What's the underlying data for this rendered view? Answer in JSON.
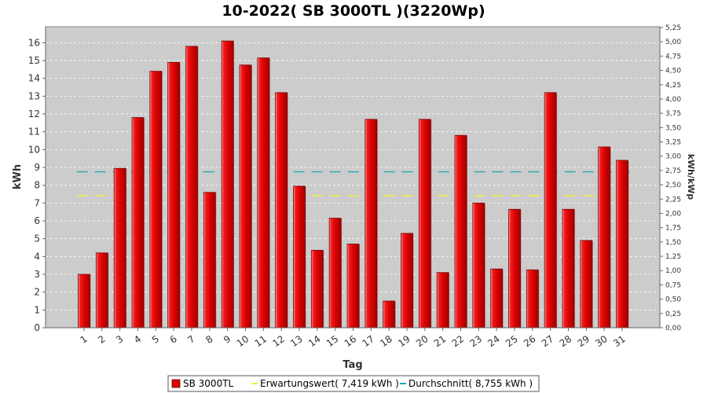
{
  "chart_data": {
    "type": "bar",
    "title": "10-2022( SB 3000TL )(3220Wp)",
    "xlabel": "Tag",
    "ylabel": "kWh",
    "y2label": "kWh/kWp",
    "ylim": [
      0,
      16.9
    ],
    "y2lim": [
      0,
      5.25
    ],
    "y_ticks": [
      0,
      1,
      2,
      3,
      4,
      5,
      6,
      7,
      8,
      9,
      10,
      11,
      12,
      13,
      14,
      15,
      16
    ],
    "y2_ticks": [
      "0,00",
      "0,25",
      "0,50",
      "0,75",
      "1,00",
      "1,25",
      "1,50",
      "1,75",
      "2,00",
      "2,25",
      "2,50",
      "2,75",
      "3,00",
      "3,25",
      "3,50",
      "3,75",
      "4,00",
      "4,25",
      "4,50",
      "4,75",
      "5,00",
      "5,25"
    ],
    "grid": true,
    "legend_position": "bottom",
    "categories": [
      "1",
      "2",
      "3",
      "4",
      "5",
      "6",
      "7",
      "8",
      "9",
      "10",
      "11",
      "12",
      "13",
      "14",
      "15",
      "16",
      "17",
      "18",
      "19",
      "20",
      "21",
      "22",
      "23",
      "24",
      "25",
      "26",
      "27",
      "28",
      "29",
      "30",
      "31"
    ],
    "series": [
      {
        "name": "SB 3000TL",
        "values": [
          3.0,
          4.2,
          8.95,
          11.8,
          14.4,
          14.9,
          15.8,
          7.6,
          16.1,
          14.75,
          15.15,
          13.2,
          7.95,
          4.35,
          6.15,
          4.7,
          11.7,
          1.5,
          5.3,
          11.7,
          3.1,
          10.8,
          7.0,
          3.3,
          6.65,
          3.25,
          13.2,
          6.65,
          4.9,
          10.15,
          9.4
        ],
        "color": "#dd0000"
      }
    ],
    "reference_lines": [
      {
        "label": "Erwartungswert( 7,419 kWh )",
        "value": 7.419,
        "color": "#eeee44"
      },
      {
        "label": "Durchschnitt( 8,755 kWh )",
        "value": 8.755,
        "color": "#22aaaa"
      }
    ],
    "colors": {
      "plot_background": "#cccccc",
      "bar": "#dd0000",
      "grid": "#ffffff"
    }
  }
}
